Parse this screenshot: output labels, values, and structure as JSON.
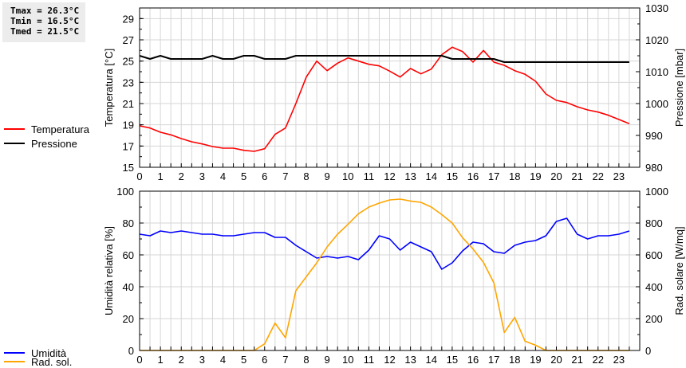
{
  "stats": {
    "tmax": "Tmax = 26.3°C",
    "tmin": "Tmin = 16.5°C",
    "tmed": "Tmed = 21.5°C"
  },
  "legend_top": [
    {
      "label": "Temperatura",
      "color": "#ff0000"
    },
    {
      "label": "Pressione",
      "color": "#000000"
    }
  ],
  "legend_bottom": [
    {
      "label": "Umidità",
      "color": "#0000ff"
    },
    {
      "label": "Rad. sol.",
      "color": "#ffa500"
    }
  ],
  "chart_data": [
    {
      "type": "line",
      "xlabel": "",
      "x": [
        0,
        0.5,
        1,
        1.5,
        2,
        2.5,
        3,
        3.5,
        4,
        4.5,
        5,
        5.5,
        6,
        6.5,
        7,
        7.5,
        8,
        8.5,
        9,
        9.5,
        10,
        10.5,
        11,
        11.5,
        12,
        12.5,
        13,
        13.5,
        14,
        14.5,
        15,
        15.5,
        16,
        16.5,
        17,
        17.5,
        18,
        18.5,
        19,
        19.5,
        20,
        20.5,
        21,
        21.5,
        22,
        22.5,
        23,
        23.5
      ],
      "xlim": [
        0,
        24
      ],
      "xticks": [
        "0",
        "1",
        "2",
        "3",
        "4",
        "5",
        "6",
        "7",
        "8",
        "9",
        "10",
        "11",
        "12",
        "13",
        "14",
        "15",
        "16",
        "17",
        "18",
        "19",
        "20",
        "21",
        "22",
        "23"
      ],
      "ylabel_left": "Temperatura [°C]",
      "ylim_left": [
        15,
        30
      ],
      "yticks_left": [
        "15",
        "17",
        "19",
        "21",
        "23",
        "25",
        "27",
        "29"
      ],
      "ylabel_right": "Pressione [mbar]",
      "ylim_right": [
        980,
        1030
      ],
      "yticks_right": [
        "980",
        "990",
        "1000",
        "1010",
        "1020",
        "1030"
      ],
      "grid": true,
      "series": [
        {
          "name": "Temperatura",
          "axis": "left",
          "color": "#ff0000",
          "values": [
            18.9,
            18.7,
            18.3,
            18.05,
            17.7,
            17.4,
            17.2,
            16.95,
            16.8,
            16.8,
            16.6,
            16.5,
            16.75,
            18.1,
            18.7,
            21.0,
            23.5,
            25.0,
            24.1,
            24.8,
            25.3,
            25.0,
            24.7,
            24.55,
            24.05,
            23.5,
            24.3,
            23.8,
            24.25,
            25.6,
            26.3,
            25.9,
            24.9,
            26.0,
            24.9,
            24.6,
            24.1,
            23.75,
            23.1,
            21.9,
            21.3,
            21.1,
            20.7,
            20.4,
            20.2,
            19.9,
            19.5,
            19.1
          ]
        },
        {
          "name": "Pressione",
          "axis": "right",
          "color": "#000000",
          "values": [
            1015,
            1014,
            1015,
            1014,
            1014,
            1014,
            1014,
            1015,
            1014,
            1014,
            1015,
            1015,
            1014,
            1014,
            1014,
            1015,
            1015,
            1015,
            1015,
            1015,
            1015,
            1015,
            1015,
            1015,
            1015,
            1015,
            1015,
            1015,
            1015,
            1015,
            1014,
            1014,
            1014,
            1014,
            1014,
            1013,
            1013,
            1013,
            1013,
            1013,
            1013,
            1013,
            1013,
            1013,
            1013,
            1013,
            1013,
            1013
          ]
        }
      ]
    },
    {
      "type": "line",
      "xlabel": "",
      "x": [
        0,
        0.5,
        1,
        1.5,
        2,
        2.5,
        3,
        3.5,
        4,
        4.5,
        5,
        5.5,
        6,
        6.5,
        7,
        7.5,
        8,
        8.5,
        9,
        9.5,
        10,
        10.5,
        11,
        11.5,
        12,
        12.5,
        13,
        13.5,
        14,
        14.5,
        15,
        15.5,
        16,
        16.5,
        17,
        17.5,
        18,
        18.5,
        19,
        19.5,
        20,
        20.5,
        21,
        21.5,
        22,
        22.5,
        23,
        23.5
      ],
      "xlim": [
        0,
        24
      ],
      "xticks": [
        "0",
        "1",
        "2",
        "3",
        "4",
        "5",
        "6",
        "7",
        "8",
        "9",
        "10",
        "11",
        "12",
        "13",
        "14",
        "15",
        "16",
        "17",
        "18",
        "19",
        "20",
        "21",
        "22",
        "23"
      ],
      "ylabel_left": "Umidità relativa [%]",
      "ylim_left": [
        0,
        100
      ],
      "yticks_left": [
        "0",
        "20",
        "40",
        "60",
        "80",
        "100"
      ],
      "ylabel_right": "Rad. solare [W/mq]",
      "ylim_right": [
        0,
        1000
      ],
      "yticks_right": [
        "0",
        "200",
        "400",
        "600",
        "800",
        "1000"
      ],
      "grid": true,
      "series": [
        {
          "name": "Umidità",
          "axis": "left",
          "color": "#0000ff",
          "values": [
            73,
            72,
            75,
            74,
            75,
            74,
            73,
            73,
            72,
            72,
            73,
            74,
            74,
            71,
            71,
            66,
            62,
            58,
            59,
            58,
            59,
            57,
            63,
            72,
            70,
            63,
            68,
            65,
            62,
            51,
            55,
            62.5,
            68,
            67,
            62,
            61,
            66,
            68,
            69,
            72,
            81,
            83,
            73,
            70,
            72,
            72,
            73,
            75
          ]
        },
        {
          "name": "Rad. sol.",
          "axis": "right",
          "color": "#ffa500",
          "values": [
            0,
            0,
            0,
            0,
            0,
            0,
            0,
            0,
            0,
            0,
            0,
            0,
            42,
            172,
            80,
            375,
            463,
            550,
            650,
            730,
            792,
            858,
            900,
            925,
            945,
            950,
            938,
            930,
            900,
            853,
            800,
            708,
            637,
            553,
            425,
            113,
            208,
            58,
            33,
            0,
            0,
            0,
            0,
            0,
            0,
            0,
            0,
            0
          ]
        }
      ]
    }
  ]
}
